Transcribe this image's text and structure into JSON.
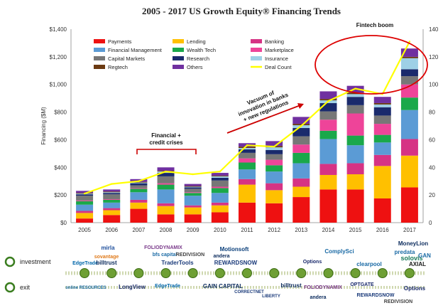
{
  "chart_data": {
    "type": "bar",
    "title": "2005 - 2017 US Growth Equity® Financing Trends",
    "ylabel": "Financing ($M)",
    "ylim": [
      0,
      1400
    ],
    "y2lim": [
      0,
      140
    ],
    "y_ticks": [
      "$0",
      "$200",
      "$400",
      "$600",
      "$800",
      "$1,000",
      "$1,200",
      "$1,400"
    ],
    "y2_ticks": [
      "0",
      "20",
      "40",
      "60",
      "80",
      "100",
      "120",
      "140"
    ],
    "categories": [
      "2005",
      "2006",
      "2007",
      "2008",
      "2009",
      "2010",
      "2011",
      "2012",
      "2013",
      "2014",
      "2015",
      "2016",
      "2017"
    ],
    "stacked": true,
    "legend_position": "top-left",
    "series": [
      {
        "name": "Payments",
        "color": "#ee1111",
        "values": [
          30,
          55,
          100,
          60,
          60,
          75,
          145,
          140,
          185,
          240,
          240,
          175,
          255
        ]
      },
      {
        "name": "Lending",
        "color": "#ffc000",
        "values": [
          40,
          35,
          45,
          60,
          50,
          50,
          130,
          95,
          75,
          105,
          110,
          235,
          230
        ]
      },
      {
        "name": "Banking",
        "color": "#d63384",
        "values": [
          15,
          15,
          20,
          20,
          15,
          20,
          40,
          50,
          60,
          80,
          80,
          80,
          120
        ]
      },
      {
        "name": "Financial Management",
        "color": "#5b9bd5",
        "values": [
          45,
          40,
          55,
          100,
          70,
          70,
          70,
          85,
          110,
          180,
          130,
          90,
          210
        ]
      },
      {
        "name": "Wealth Tech",
        "color": "#1aa84a",
        "values": [
          25,
          20,
          25,
          35,
          20,
          35,
          50,
          45,
          75,
          60,
          70,
          55,
          90
        ]
      },
      {
        "name": "Marketplace",
        "color": "#ee4499",
        "values": [
          5,
          5,
          5,
          10,
          5,
          10,
          30,
          40,
          60,
          80,
          160,
          80,
          95
        ]
      },
      {
        "name": "Capital Markets",
        "color": "#777777",
        "values": [
          35,
          35,
          20,
          50,
          25,
          45,
          40,
          40,
          60,
          60,
          60,
          60,
          60
        ]
      },
      {
        "name": "Research",
        "color": "#1a2a6c",
        "values": [
          10,
          10,
          15,
          25,
          10,
          20,
          25,
          30,
          60,
          60,
          60,
          60,
          50
        ]
      },
      {
        "name": "Insurance",
        "color": "#9ed0e6",
        "values": [
          5,
          5,
          5,
          10,
          5,
          10,
          10,
          20,
          20,
          20,
          20,
          20,
          80
        ]
      },
      {
        "name": "Regtech",
        "color": "#6b3a12",
        "values": [
          5,
          5,
          5,
          5,
          5,
          5,
          10,
          10,
          10,
          10,
          10,
          10,
          10
        ]
      },
      {
        "name": "Others",
        "color": "#7030a0",
        "values": [
          15,
          15,
          20,
          25,
          15,
          20,
          25,
          35,
          50,
          55,
          50,
          45,
          60
        ]
      }
    ],
    "line": {
      "name": "Deal Count",
      "color": "#ffff00",
      "axis": "right",
      "values": [
        21,
        28,
        30,
        37,
        35,
        37,
        56,
        55,
        70,
        88,
        97,
        93,
        131
      ]
    },
    "annotations": [
      {
        "text_lines": [
          "Financial +",
          "credit crises"
        ],
        "color": "#cc0000"
      },
      {
        "text_lines": [
          "Vacuum of",
          "innovation in banks",
          "+ new regulations"
        ],
        "color": "#cc0000"
      },
      {
        "text_lines": [
          "Fintech boom"
        ],
        "color": "#dd0000"
      }
    ]
  },
  "timeline": {
    "investment_label": "investment",
    "exit_label": "exit",
    "investment_logos": [
      {
        "text": "mirla",
        "color": "#1f4f9c"
      },
      {
        "text": "sovantage",
        "color": "#e07a1a"
      },
      {
        "text": "EdgeTrade",
        "color": "#0066aa"
      },
      {
        "text": "billtrust",
        "color": "#0a2a5c"
      },
      {
        "text": "FOLIODYNAMIX",
        "color": "#7a3a8a"
      },
      {
        "text": "bfs capital",
        "color": "#1a6aa5"
      },
      {
        "text": "REDIVISION",
        "color": "#444444"
      },
      {
        "text": "TraderTools",
        "color": "#1a3a7a"
      },
      {
        "text": "Motionsoft",
        "color": "#0a3f7a"
      },
      {
        "text": "andera",
        "color": "#0a2a5c"
      },
      {
        "text": "REWARDSNOW",
        "color": "#1a3a7a"
      },
      {
        "text": "ComplySci",
        "color": "#1a6aa5"
      },
      {
        "text": "Options",
        "color": "#1a2a6c"
      },
      {
        "text": "MoneyLion",
        "color": "#0a2a5c"
      },
      {
        "text": "predata",
        "color": "#1a6aa5"
      },
      {
        "text": "solovis",
        "color": "#1a7a5a"
      },
      {
        "text": "GAN",
        "color": "#1a6aa5"
      },
      {
        "text": "clearpool",
        "color": "#1a6aa5"
      },
      {
        "text": "AXIAL",
        "color": "#1a1a1a"
      }
    ],
    "exit_logos": [
      {
        "text": "online RESOURCES",
        "color": "#1a6aa5"
      },
      {
        "text": "LongView",
        "color": "#1a2a6c"
      },
      {
        "text": "EdgeTrade",
        "color": "#0066aa"
      },
      {
        "text": "GAIN CAPITAL",
        "color": "#0a2a5c"
      },
      {
        "text": "CORRECTNET",
        "color": "#1a3a7a"
      },
      {
        "text": "LIBERTY",
        "color": "#1a3a7a"
      },
      {
        "text": "billtrust",
        "color": "#0a2a5c"
      },
      {
        "text": "FOLIODYNAMIX",
        "color": "#7a3a8a"
      },
      {
        "text": "andera",
        "color": "#0a2a5c"
      },
      {
        "text": "OPTGATE",
        "color": "#1a2a6c"
      },
      {
        "text": "REWARDSNOW",
        "color": "#1a3a7a"
      },
      {
        "text": "REDIVISION",
        "color": "#444444"
      },
      {
        "text": "Options",
        "color": "#1a2a6c"
      }
    ]
  }
}
